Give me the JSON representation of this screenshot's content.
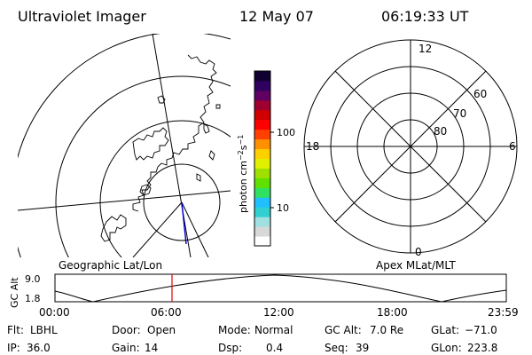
{
  "header": {
    "instrument": "Ultraviolet Imager",
    "date": "12 May 07",
    "time": "06:19:33 UT"
  },
  "colorbar": {
    "label_main": "photon cm",
    "label_exp1": "−2",
    "label_mid": "s",
    "label_exp2": "−1",
    "tick_100": "100",
    "tick_10": "10",
    "colors": [
      "#ffffff",
      "#d8d8d8",
      "#a0e0e0",
      "#30d0d0",
      "#20c0ff",
      "#30e060",
      "#60e000",
      "#a0e000",
      "#e0f000",
      "#ffd000",
      "#ff9000",
      "#ff4000",
      "#ff0000",
      "#d00000",
      "#a00030",
      "#600060",
      "#300060",
      "#100030"
    ]
  },
  "polar_grid": {
    "mlt_top": "12",
    "mlt_left": "18",
    "mlt_right": "6",
    "mlt_bottom": "0",
    "lat_60": "60",
    "lat_70": "70",
    "lat_80": "80"
  },
  "labels": {
    "geographic": "Geographic Lat/Lon",
    "apex": "Apex MLat/MLT"
  },
  "altitude_plot": {
    "ylabel": "GC Alt",
    "y_top": "9.0",
    "y_bottom": "1.8",
    "x_ticks": [
      "00:00",
      "06:00",
      "12:00",
      "18:00",
      "23:59"
    ],
    "current_time_marker": "06:19"
  },
  "footer": {
    "flt_label": "Flt:",
    "flt_value": "LBHL",
    "door_label": "Door:",
    "door_value": "Open",
    "mode_label": "Mode:",
    "mode_value": "Normal",
    "gcalt_label": "GC Alt:",
    "gcalt_value": "7.0 Re",
    "glat_label": "GLat:",
    "glat_value": "−71.0",
    "ip_label": "IP:",
    "ip_value": "36.0",
    "gain_label": "Gain:",
    "gain_value": "14",
    "dsp_label": "Dsp:",
    "dsp_value": "0.4",
    "seq_label": "Seq:",
    "seq_value": "39",
    "glon_label": "GLon:",
    "glon_value": "223.8"
  }
}
